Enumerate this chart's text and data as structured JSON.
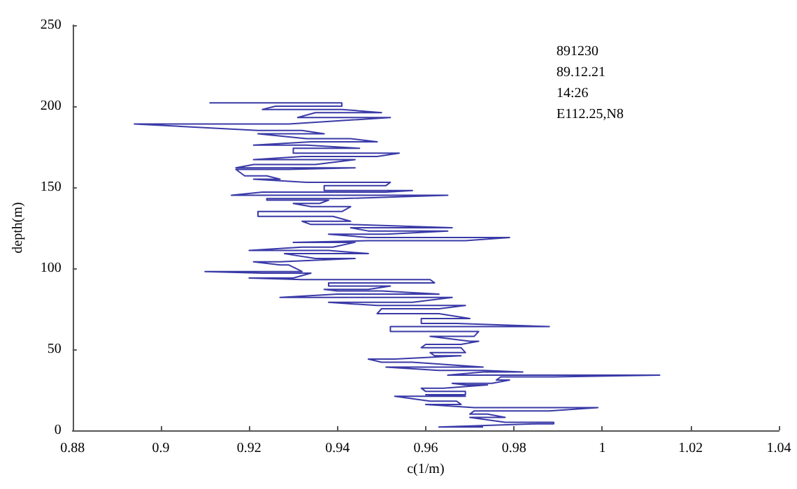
{
  "chart_data": {
    "type": "line",
    "xlabel": "c(1/m)",
    "ylabel": "depth(m)",
    "annotations": [
      "891230",
      "89.12.21",
      "14:26",
      "E112.25,N8"
    ],
    "xlim": [
      0.88,
      1.04
    ],
    "xticks": [
      0.88,
      0.9,
      0.92,
      0.94,
      0.96,
      0.98,
      1,
      1.02,
      1.04
    ],
    "ylim": [
      0,
      250
    ],
    "yticks": [
      0,
      50,
      100,
      150,
      200,
      250
    ],
    "grid": false,
    "marker": "none",
    "line_style": "solid",
    "series": [
      {
        "color": "#3a3aa8",
        "x": [
          0.911,
          0.941,
          0.941,
          0.926,
          0.923,
          0.941,
          0.95,
          0.935,
          0.931,
          0.952,
          0.929,
          0.894,
          0.922,
          0.932,
          0.937,
          0.922,
          0.933,
          0.943,
          0.949,
          0.934,
          0.921,
          0.933,
          0.945,
          0.93,
          0.93,
          0.954,
          0.949,
          0.932,
          0.921,
          0.944,
          0.935,
          0.921,
          0.917,
          0.944,
          0.929,
          0.917,
          0.919,
          0.924,
          0.927,
          0.921,
          0.933,
          0.952,
          0.951,
          0.937,
          0.937,
          0.957,
          0.951,
          0.923,
          0.916,
          0.965,
          0.941,
          0.924,
          0.924,
          0.938,
          0.936,
          0.93,
          0.934,
          0.943,
          0.941,
          0.922,
          0.922,
          0.939,
          0.943,
          0.932,
          0.934,
          0.943,
          0.966,
          0.943,
          0.947,
          0.965,
          0.951,
          0.938,
          0.947,
          0.979,
          0.969,
          0.947,
          0.93,
          0.944,
          0.939,
          0.932,
          0.92,
          0.938,
          0.947,
          0.928,
          0.935,
          0.944,
          0.927,
          0.921,
          0.927,
          0.929,
          0.932,
          0.91,
          0.923,
          0.934,
          0.93,
          0.92,
          0.932,
          0.961,
          0.962,
          0.938,
          0.938,
          0.952,
          0.947,
          0.937,
          0.94,
          0.95,
          0.963,
          0.94,
          0.927,
          0.966,
          0.957,
          0.938,
          0.949,
          0.969,
          0.963,
          0.95,
          0.949,
          0.963,
          0.97,
          0.959,
          0.959,
          0.967,
          0.988,
          0.952,
          0.952,
          0.972,
          0.971,
          0.961,
          0.97,
          0.972,
          0.968,
          0.96,
          0.959,
          0.968,
          0.969,
          0.961,
          0.962,
          0.968,
          0.953,
          0.947,
          0.95,
          0.957,
          0.973,
          0.951,
          0.963,
          0.973,
          0.982,
          0.973,
          0.965,
          1.013,
          0.989,
          0.977,
          0.976,
          0.979,
          0.975,
          0.966,
          0.969,
          0.974,
          0.964,
          0.959,
          0.96,
          0.969,
          0.969,
          0.96,
          0.969,
          0.953,
          0.961,
          0.967,
          0.968,
          0.96,
          0.971,
          0.999,
          0.988,
          0.971,
          0.97,
          0.974,
          0.978,
          0.97,
          0.978,
          0.989,
          0.989,
          0.985,
          0.963,
          0.973
        ],
        "values": [
          202,
          202,
          200,
          200,
          198,
          198,
          196,
          196,
          193,
          193,
          189,
          189,
          185,
          185,
          183,
          183,
          180,
          180,
          178,
          178,
          176,
          176,
          174,
          174,
          171,
          171,
          169,
          169,
          167,
          167,
          164,
          164,
          162,
          162,
          161,
          161,
          157,
          157,
          155,
          155,
          153,
          153,
          151,
          151,
          148,
          148,
          147,
          147,
          145,
          145,
          143,
          143,
          142,
          142,
          140,
          140,
          138,
          138,
          135,
          135,
          132,
          132,
          129,
          129,
          127,
          127,
          125,
          125,
          123,
          123,
          121,
          121,
          119,
          119,
          117,
          117,
          116,
          116,
          113,
          113,
          111,
          111,
          109,
          109,
          106,
          106,
          104,
          104,
          102,
          102,
          98,
          98,
          97,
          97,
          94,
          94,
          93,
          93,
          91,
          91,
          89,
          89,
          87,
          87,
          86,
          86,
          84,
          84,
          82,
          82,
          79,
          79,
          77,
          77,
          75,
          75,
          72,
          72,
          69,
          69,
          66,
          66,
          64,
          64,
          61,
          61,
          58,
          58,
          55,
          55,
          53,
          53,
          51,
          51,
          48,
          48,
          46,
          46,
          44,
          44,
          42,
          42,
          39,
          39,
          37,
          37,
          36,
          36,
          34,
          34,
          33,
          33,
          31,
          31,
          29,
          29,
          28,
          28,
          26,
          26,
          24,
          24,
          22,
          22,
          21,
          21,
          18,
          18,
          16,
          16,
          14,
          14,
          12,
          12,
          10,
          10,
          8,
          8,
          5,
          5,
          4,
          4,
          2,
          2
        ]
      }
    ]
  }
}
